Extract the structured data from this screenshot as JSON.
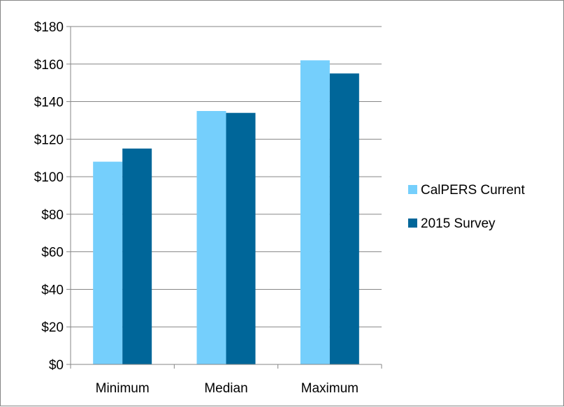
{
  "chart_data": {
    "type": "bar",
    "categories": [
      "Minimum",
      "Median",
      "Maximum"
    ],
    "series": [
      {
        "name": "CalPERS Current",
        "values": [
          108,
          135,
          162
        ],
        "color": "#75CFFC"
      },
      {
        "name": "2015 Survey",
        "values": [
          115,
          134,
          155
        ],
        "color": "#006699"
      }
    ],
    "ylim": [
      0,
      180
    ],
    "yticks": [
      0,
      20,
      40,
      60,
      80,
      100,
      120,
      140,
      160,
      180
    ],
    "ytick_labels": [
      "$0",
      "$20",
      "$40",
      "$60",
      "$80",
      "$100",
      "$120",
      "$140",
      "$160",
      "$180"
    ],
    "grid": true,
    "legend_position": "right",
    "gridline_color": "#868686"
  }
}
